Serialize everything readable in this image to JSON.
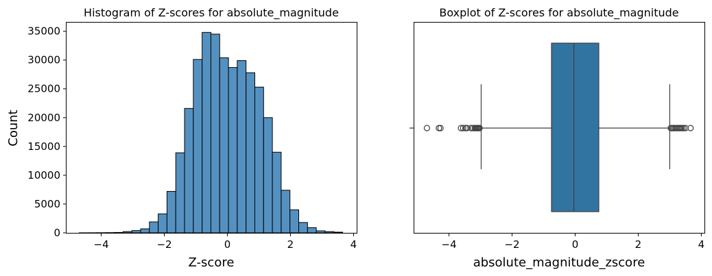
{
  "chart_data": [
    {
      "type": "bar",
      "title": "Histogram of Z-scores for absolute_magnitude",
      "xlabel": "Z-score",
      "ylabel": "Count",
      "xlim": [
        -5.1,
        4.1
      ],
      "ylim": [
        0,
        36500
      ],
      "xticks": [
        -4,
        -2,
        0,
        2,
        4
      ],
      "xtick_labels": [
        "−4",
        "−2",
        "0",
        "2",
        "4"
      ],
      "yticks": [
        0,
        5000,
        10000,
        15000,
        20000,
        25000,
        30000,
        35000
      ],
      "ytick_labels": [
        "0",
        "5000",
        "10000",
        "15000",
        "20000",
        "25000",
        "30000",
        "35000"
      ],
      "bin_start": -4.7,
      "bin_width": 0.2785,
      "values": [
        10,
        15,
        25,
        40,
        70,
        220,
        400,
        700,
        1900,
        3300,
        7200,
        13900,
        21600,
        30100,
        34800,
        34500,
        30400,
        28700,
        29900,
        27800,
        25300,
        20000,
        14000,
        7400,
        4000,
        1800,
        900,
        350,
        220,
        120
      ],
      "bar_color": "#5591c0",
      "edge_color": "#000000",
      "grid": false
    },
    {
      "type": "boxplot",
      "title": "Boxplot of Z-scores for absolute_magnitude",
      "xlabel": "absolute_magnitude_zscore",
      "xlim": [
        -5.1,
        4.1
      ],
      "xticks": [
        -4,
        -2,
        0,
        2,
        4
      ],
      "xtick_labels": [
        "−4",
        "−2",
        "0",
        "2",
        "4"
      ],
      "whisker_low": -2.98,
      "q1": -0.75,
      "median": -0.04,
      "q3": 0.75,
      "whisker_high": 3.0,
      "outliers": [
        -4.7,
        -4.32,
        -4.27,
        -3.62,
        -3.55,
        -3.48,
        -3.43,
        -3.3,
        -3.24,
        -3.18,
        -3.15,
        -3.12,
        -3.09,
        -3.06,
        -3.03,
        3.03,
        3.07,
        3.11,
        3.15,
        3.19,
        3.23,
        3.27,
        3.31,
        3.35,
        3.39,
        3.44,
        3.5,
        3.66
      ],
      "box_color": "#3274a1",
      "line_color": "#3d3d3d",
      "grid": false
    }
  ]
}
